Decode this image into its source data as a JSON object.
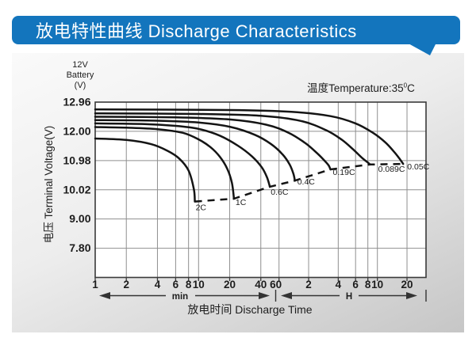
{
  "banner": {
    "title": "放电特性曲线 Discharge Characteristics",
    "color": "#1375bd"
  },
  "chart_data": {
    "type": "line",
    "temperature_note": {
      "prefix": "温度Temperature:35",
      "sup": "0",
      "suffix": "C"
    },
    "y_axis": {
      "unit_lines": [
        "12V",
        "Battery",
        "(V)"
      ],
      "title": "电压 Terminal Voltage(V)",
      "ticks": [
        12.96,
        12.0,
        10.98,
        10.02,
        9.0,
        7.8
      ],
      "tick_labels": [
        "12.96",
        "12.00",
        "10.98",
        "10.02",
        "9.00",
        "7.80"
      ]
    },
    "x_axis": {
      "title": "放电时间 Discharge Time",
      "minute_section_label": "min",
      "hour_section_label": "H",
      "minute_ticks": [
        1,
        2,
        4,
        6,
        8,
        10,
        20,
        40,
        60
      ],
      "hour_ticks": [
        2,
        4,
        6,
        8,
        10,
        20
      ],
      "scale": "log",
      "unit_note": "minute section 1-60 min, hour section 2-20 H"
    },
    "series": [
      {
        "label": "2C",
        "points": [
          [
            1,
            11.75
          ],
          [
            2,
            11.7
          ],
          [
            3.5,
            11.55
          ],
          [
            5,
            11.32
          ],
          [
            6.5,
            11.05
          ],
          [
            8,
            10.65
          ],
          [
            9,
            10.05
          ],
          [
            9.2,
            9.61
          ]
        ]
      },
      {
        "label": "1C",
        "points": [
          [
            1,
            12.14
          ],
          [
            2,
            12.12
          ],
          [
            4,
            12.07
          ],
          [
            7,
            11.95
          ],
          [
            10,
            11.72
          ],
          [
            13,
            11.45
          ],
          [
            16,
            11.12
          ],
          [
            19,
            10.7
          ],
          [
            21,
            10.25
          ],
          [
            22,
            9.71
          ]
        ]
      },
      {
        "label": "0.6C",
        "points": [
          [
            1,
            12.26
          ],
          [
            3,
            12.24
          ],
          [
            6,
            12.18
          ],
          [
            10,
            12.08
          ],
          [
            16,
            11.85
          ],
          [
            24,
            11.5
          ],
          [
            33,
            11.12
          ],
          [
            41,
            10.75
          ],
          [
            46,
            10.42
          ],
          [
            49,
            10.12
          ]
        ]
      },
      {
        "label": "0.4C",
        "points": [
          [
            1,
            12.37
          ],
          [
            4,
            12.35
          ],
          [
            10,
            12.29
          ],
          [
            20,
            12.15
          ],
          [
            35,
            11.88
          ],
          [
            50,
            11.56
          ],
          [
            65,
            11.2
          ],
          [
            77,
            10.85
          ],
          [
            84,
            10.55
          ],
          [
            87,
            10.32
          ]
        ]
      },
      {
        "label": "0.19C",
        "points": [
          [
            1,
            12.48
          ],
          [
            6,
            12.46
          ],
          [
            20,
            12.39
          ],
          [
            45,
            12.22
          ],
          [
            75,
            11.95
          ],
          [
            110,
            11.6
          ],
          [
            145,
            11.25
          ],
          [
            175,
            10.97
          ],
          [
            192,
            10.82
          ],
          [
            200,
            10.69
          ]
        ]
      },
      {
        "label": "0.089C",
        "points": [
          [
            1,
            12.59
          ],
          [
            10,
            12.57
          ],
          [
            40,
            12.51
          ],
          [
            100,
            12.34
          ],
          [
            180,
            12.04
          ],
          [
            260,
            11.71
          ],
          [
            340,
            11.37
          ],
          [
            420,
            11.07
          ],
          [
            470,
            10.94
          ],
          [
            507,
            10.85
          ]
        ]
      },
      {
        "label": "0.05C",
        "points": [
          [
            1,
            12.72
          ],
          [
            20,
            12.7
          ],
          [
            80,
            12.64
          ],
          [
            200,
            12.5
          ],
          [
            360,
            12.26
          ],
          [
            540,
            11.95
          ],
          [
            720,
            11.62
          ],
          [
            880,
            11.3
          ],
          [
            1000,
            11.06
          ],
          [
            1098,
            10.87
          ]
        ]
      }
    ],
    "cutoff_line": {
      "style": "dashed",
      "points": [
        [
          9.2,
          9.61
        ],
        [
          22,
          9.71
        ],
        [
          49,
          10.12
        ],
        [
          87,
          10.32
        ],
        [
          200,
          10.69
        ],
        [
          507,
          10.85
        ],
        [
          1098,
          10.87
        ]
      ]
    },
    "colors": {
      "curve": "#141414",
      "grid": "#8f8f8f",
      "border": "#3a3a3a",
      "text": "#1d1d1d"
    }
  }
}
